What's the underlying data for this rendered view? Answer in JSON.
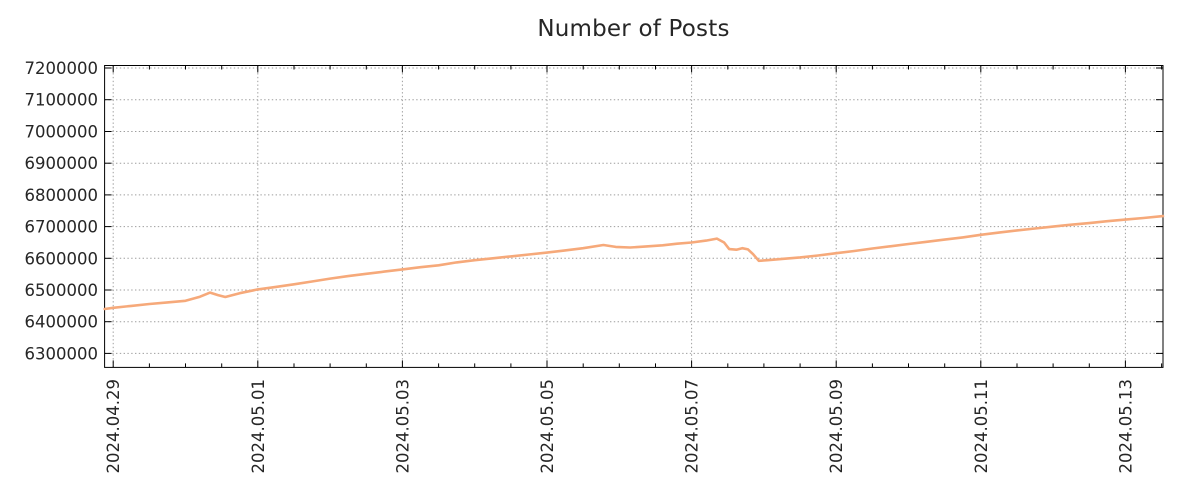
{
  "chart_data": {
    "type": "line",
    "title": "Number of Posts",
    "xlabel": "",
    "ylabel": "",
    "legend": "none",
    "grid": true,
    "x_unit": "days since 2024-04-29 00:00",
    "xlim": [
      -0.119,
      14.52
    ],
    "ylim": [
      6256000,
      7208000
    ],
    "x_ticks": [
      {
        "t": 0,
        "label": "2024.04.29"
      },
      {
        "t": 2,
        "label": "2024.05.01"
      },
      {
        "t": 4,
        "label": "2024.05.03"
      },
      {
        "t": 6,
        "label": "2024.05.05"
      },
      {
        "t": 8,
        "label": "2024.05.07"
      },
      {
        "t": 10,
        "label": "2024.05.09"
      },
      {
        "t": 12,
        "label": "2024.05.11"
      },
      {
        "t": 14,
        "label": "2024.05.13"
      }
    ],
    "x_minor_step": 0.5,
    "y_ticks": [
      6300000,
      6400000,
      6500000,
      6600000,
      6700000,
      6800000,
      6900000,
      7000000,
      7100000,
      7200000
    ],
    "series": [
      {
        "name": "Number of Posts",
        "color": "#f6a97a",
        "points": [
          [
            -0.119,
            6440000
          ],
          [
            0,
            6444000
          ],
          [
            0.25,
            6450000
          ],
          [
            0.5,
            6456000
          ],
          [
            0.75,
            6461000
          ],
          [
            1.0,
            6466000
          ],
          [
            1.2,
            6479000
          ],
          [
            1.34,
            6492000
          ],
          [
            1.45,
            6484000
          ],
          [
            1.55,
            6478000
          ],
          [
            1.75,
            6490000
          ],
          [
            2.0,
            6502000
          ],
          [
            2.25,
            6510000
          ],
          [
            2.5,
            6518000
          ],
          [
            2.75,
            6527000
          ],
          [
            3.0,
            6536000
          ],
          [
            3.25,
            6544000
          ],
          [
            3.5,
            6551000
          ],
          [
            3.75,
            6558000
          ],
          [
            4.0,
            6565000
          ],
          [
            4.25,
            6572000
          ],
          [
            4.5,
            6578000
          ],
          [
            4.75,
            6587000
          ],
          [
            5.0,
            6594000
          ],
          [
            5.25,
            6600000
          ],
          [
            5.5,
            6606000
          ],
          [
            5.75,
            6612000
          ],
          [
            6.0,
            6618000
          ],
          [
            6.25,
            6625000
          ],
          [
            6.5,
            6632000
          ],
          [
            6.78,
            6642000
          ],
          [
            6.95,
            6636000
          ],
          [
            7.15,
            6634000
          ],
          [
            7.35,
            6637000
          ],
          [
            7.6,
            6641000
          ],
          [
            7.8,
            6646000
          ],
          [
            8.0,
            6650000
          ],
          [
            8.2,
            6656000
          ],
          [
            8.35,
            6662000
          ],
          [
            8.45,
            6650000
          ],
          [
            8.52,
            6629000
          ],
          [
            8.62,
            6627000
          ],
          [
            8.7,
            6632000
          ],
          [
            8.78,
            6628000
          ],
          [
            8.85,
            6613000
          ],
          [
            8.93,
            6592000
          ],
          [
            9.05,
            6594000
          ],
          [
            9.25,
            6598000
          ],
          [
            9.5,
            6603000
          ],
          [
            9.75,
            6609000
          ],
          [
            10.0,
            6616000
          ],
          [
            10.25,
            6623000
          ],
          [
            10.5,
            6631000
          ],
          [
            10.75,
            6638000
          ],
          [
            11.0,
            6645000
          ],
          [
            11.25,
            6652000
          ],
          [
            11.5,
            6659000
          ],
          [
            11.75,
            6666000
          ],
          [
            12.0,
            6674000
          ],
          [
            12.25,
            6681000
          ],
          [
            12.5,
            6688000
          ],
          [
            12.75,
            6694000
          ],
          [
            13.0,
            6700000
          ],
          [
            13.25,
            6706000
          ],
          [
            13.5,
            6711000
          ],
          [
            13.75,
            6717000
          ],
          [
            14.0,
            6722000
          ],
          [
            14.25,
            6727000
          ],
          [
            14.52,
            6733000
          ]
        ]
      }
    ],
    "style": {
      "line_color": "#f6a97a",
      "grid_color": "#9e9e9e",
      "axis_color": "#000000",
      "text_color": "#262626",
      "background": "#ffffff"
    }
  }
}
